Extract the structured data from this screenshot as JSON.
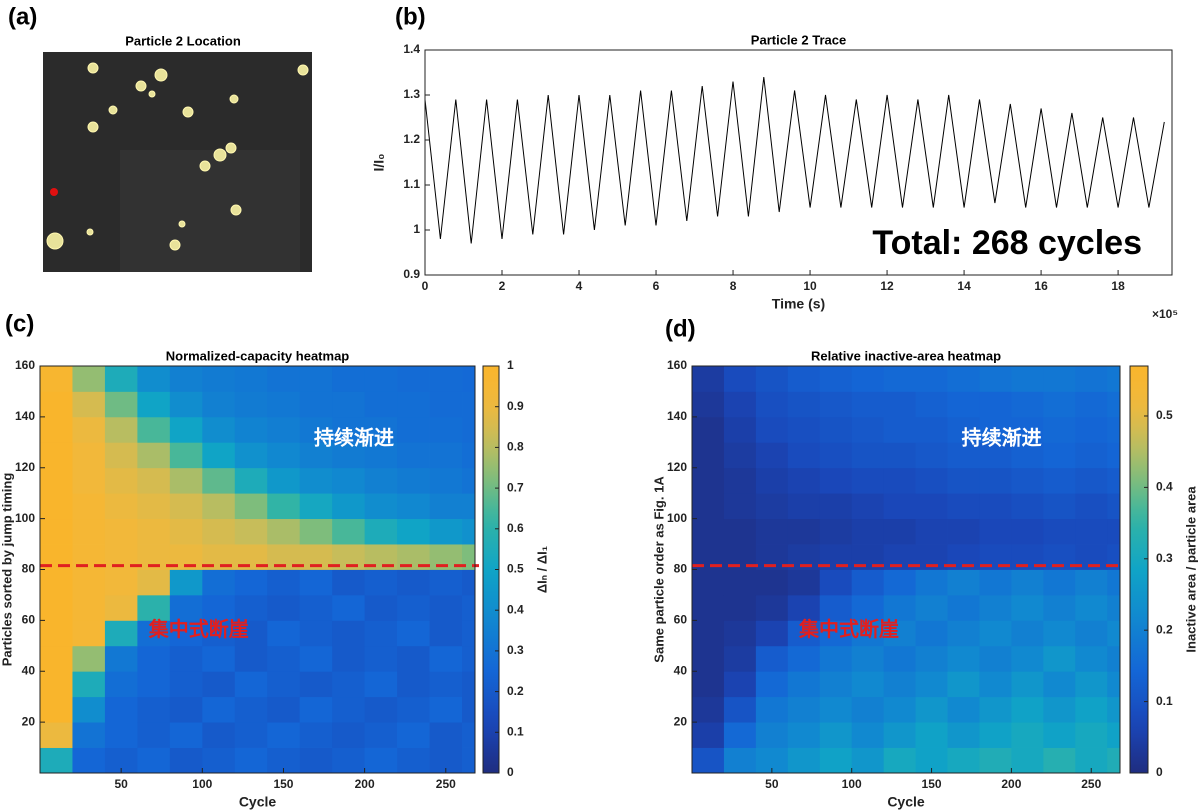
{
  "panel_labels": [
    "(a)",
    "(b)",
    "(c)",
    "(d)"
  ],
  "image": {
    "title": "Particle 2 Location"
  },
  "chart_data": [
    {
      "type": "line",
      "title": "Particle 2 Trace",
      "xlabel": "Time (s)",
      "ylabel": "I/I₀",
      "x_multiplier": "×10⁵",
      "annotation": "Total: 268 cycles",
      "color": "#000000",
      "x": [
        0,
        0.4,
        0.8,
        1.2,
        1.6,
        2.0,
        2.4,
        2.8,
        3.2,
        3.6,
        4.0,
        4.4,
        4.8,
        5.2,
        5.6,
        6.0,
        6.4,
        6.8,
        7.2,
        7.6,
        8.0,
        8.4,
        8.8,
        9.2,
        9.6,
        10.0,
        10.4,
        10.8,
        11.2,
        11.6,
        12.0,
        12.4,
        12.8,
        13.2,
        13.6,
        14.0,
        14.4,
        14.8,
        15.2,
        15.6,
        16.0,
        16.4,
        16.8,
        17.2,
        17.6,
        18.0,
        18.4,
        18.8,
        19.2
      ],
      "values": [
        1.29,
        0.98,
        1.29,
        0.97,
        1.29,
        0.98,
        1.29,
        0.99,
        1.3,
        0.99,
        1.3,
        1.0,
        1.3,
        1.01,
        1.31,
        1.01,
        1.31,
        1.02,
        1.32,
        1.03,
        1.33,
        1.03,
        1.34,
        1.04,
        1.31,
        1.05,
        1.3,
        1.05,
        1.29,
        1.05,
        1.3,
        1.05,
        1.29,
        1.05,
        1.3,
        1.05,
        1.29,
        1.06,
        1.28,
        1.05,
        1.27,
        1.05,
        1.26,
        1.05,
        1.25,
        1.05,
        1.25,
        1.05,
        1.24
      ],
      "xlim": [
        0,
        19.4
      ],
      "xticks": [
        0,
        2,
        4,
        6,
        8,
        10,
        12,
        14,
        16,
        18
      ],
      "ylim": [
        0.9,
        1.4
      ],
      "yticks": [
        0.9,
        1,
        1.1,
        1.2,
        1.3,
        1.4
      ]
    },
    {
      "type": "heatmap",
      "title": "Normalized-capacity heatmap",
      "xlabel": "Cycle",
      "ylabel": "Particles sorted by jump timing",
      "colorbar_label": "ΔIₙ / ΔI₁",
      "annotations": [
        "持续渐进",
        "集中式断崖"
      ],
      "annotation_colors": [
        "#ffffff",
        "#e02020"
      ],
      "hline": 81.5,
      "hline_color": "#e02020",
      "x_edges": [
        0,
        20,
        40,
        60,
        80,
        100,
        120,
        140,
        160,
        180,
        200,
        220,
        240,
        260,
        268
      ],
      "y_edges": [
        0,
        10,
        20,
        30,
        40,
        50,
        60,
        70,
        80,
        90,
        100,
        110,
        120,
        130,
        140,
        150,
        160
      ],
      "z": [
        [
          0.55,
          0.25,
          0.22,
          0.25,
          0.2,
          0.22,
          0.25,
          0.22,
          0.2,
          0.22,
          0.25,
          0.22,
          0.2,
          0.22
        ],
        [
          0.9,
          0.3,
          0.25,
          0.22,
          0.25,
          0.2,
          0.22,
          0.25,
          0.22,
          0.2,
          0.22,
          0.25,
          0.2,
          0.22
        ],
        [
          1,
          0.4,
          0.25,
          0.22,
          0.2,
          0.25,
          0.22,
          0.2,
          0.25,
          0.22,
          0.2,
          0.22,
          0.25,
          0.2
        ],
        [
          1,
          0.55,
          0.28,
          0.25,
          0.22,
          0.2,
          0.25,
          0.22,
          0.2,
          0.22,
          0.25,
          0.2,
          0.22,
          0.2
        ],
        [
          1,
          0.75,
          0.32,
          0.25,
          0.22,
          0.25,
          0.2,
          0.22,
          0.25,
          0.2,
          0.22,
          0.2,
          0.25,
          0.22
        ],
        [
          1,
          0.95,
          0.55,
          0.28,
          0.25,
          0.22,
          0.2,
          0.25,
          0.22,
          0.2,
          0.22,
          0.25,
          0.2,
          0.22
        ],
        [
          1,
          0.95,
          0.9,
          0.6,
          0.28,
          0.25,
          0.22,
          0.2,
          0.22,
          0.25,
          0.2,
          0.22,
          0.2,
          0.22
        ],
        [
          1,
          0.95,
          0.92,
          0.88,
          0.45,
          0.28,
          0.25,
          0.22,
          0.25,
          0.2,
          0.22,
          0.2,
          0.22,
          0.2
        ],
        [
          1,
          0.95,
          0.92,
          0.9,
          0.9,
          0.88,
          0.88,
          0.85,
          0.85,
          0.82,
          0.8,
          0.78,
          0.75,
          0.72
        ],
        [
          1,
          0.95,
          0.92,
          0.9,
          0.88,
          0.85,
          0.82,
          0.78,
          0.72,
          0.65,
          0.55,
          0.5,
          0.45,
          0.42
        ],
        [
          1,
          0.95,
          0.9,
          0.88,
          0.85,
          0.8,
          0.72,
          0.62,
          0.52,
          0.45,
          0.4,
          0.38,
          0.35,
          0.35
        ],
        [
          1,
          0.92,
          0.88,
          0.85,
          0.78,
          0.68,
          0.55,
          0.45,
          0.4,
          0.38,
          0.35,
          0.33,
          0.32,
          0.3
        ],
        [
          1,
          0.92,
          0.85,
          0.78,
          0.65,
          0.5,
          0.42,
          0.38,
          0.35,
          0.33,
          0.32,
          0.3,
          0.3,
          0.28
        ],
        [
          1,
          0.9,
          0.8,
          0.65,
          0.5,
          0.4,
          0.36,
          0.34,
          0.32,
          0.3,
          0.3,
          0.28,
          0.28,
          0.27
        ],
        [
          1,
          0.85,
          0.7,
          0.5,
          0.4,
          0.35,
          0.33,
          0.32,
          0.3,
          0.3,
          0.28,
          0.28,
          0.27,
          0.27
        ],
        [
          0.98,
          0.75,
          0.55,
          0.4,
          0.35,
          0.33,
          0.32,
          0.3,
          0.3,
          0.28,
          0.28,
          0.27,
          0.27,
          0.26
        ]
      ],
      "xlim": [
        0,
        268
      ],
      "xticks": [
        50,
        100,
        150,
        200,
        250
      ],
      "ylim": [
        0,
        160
      ],
      "yticks": [
        20,
        40,
        60,
        80,
        100,
        120,
        140,
        160
      ],
      "clim": [
        0,
        1
      ],
      "cticks": [
        0,
        0.1,
        0.2,
        0.3,
        0.4,
        0.5,
        0.6,
        0.7,
        0.8,
        0.9,
        1
      ]
    },
    {
      "type": "heatmap",
      "title": "Relative inactive-area heatmap",
      "xlabel": "Cycle",
      "ylabel": "Same particle order as Fig. 1A",
      "colorbar_label": "Inactive area / particle area",
      "annotations": [
        "持续渐进",
        "集中式断崖"
      ],
      "annotation_colors": [
        "#ffffff",
        "#e02020"
      ],
      "hline": 81.5,
      "hline_color": "#e02020",
      "x_edges": [
        0,
        20,
        40,
        60,
        80,
        100,
        120,
        140,
        160,
        180,
        200,
        220,
        240,
        260,
        268
      ],
      "y_edges": [
        0,
        10,
        20,
        30,
        40,
        50,
        60,
        70,
        80,
        90,
        100,
        110,
        120,
        130,
        140,
        150,
        160
      ],
      "z": [
        [
          0.1,
          0.2,
          0.22,
          0.25,
          0.28,
          0.25,
          0.3,
          0.28,
          0.3,
          0.32,
          0.3,
          0.33,
          0.3,
          0.32
        ],
        [
          0.05,
          0.15,
          0.2,
          0.22,
          0.25,
          0.22,
          0.25,
          0.28,
          0.25,
          0.28,
          0.3,
          0.28,
          0.3,
          0.28
        ],
        [
          0.03,
          0.1,
          0.18,
          0.2,
          0.22,
          0.2,
          0.22,
          0.25,
          0.22,
          0.25,
          0.28,
          0.25,
          0.28,
          0.25
        ],
        [
          0.02,
          0.06,
          0.15,
          0.18,
          0.2,
          0.22,
          0.2,
          0.22,
          0.25,
          0.22,
          0.25,
          0.22,
          0.25,
          0.22
        ],
        [
          0.02,
          0.04,
          0.12,
          0.15,
          0.18,
          0.2,
          0.18,
          0.2,
          0.22,
          0.2,
          0.22,
          0.25,
          0.22,
          0.2
        ],
        [
          0.02,
          0.03,
          0.06,
          0.12,
          0.15,
          0.18,
          0.2,
          0.18,
          0.2,
          0.22,
          0.2,
          0.22,
          0.2,
          0.22
        ],
        [
          0.02,
          0.02,
          0.03,
          0.06,
          0.12,
          0.15,
          0.18,
          0.2,
          0.18,
          0.2,
          0.22,
          0.2,
          0.22,
          0.2
        ],
        [
          0.02,
          0.02,
          0.02,
          0.03,
          0.08,
          0.12,
          0.15,
          0.18,
          0.2,
          0.18,
          0.2,
          0.18,
          0.2,
          0.18
        ],
        [
          0.02,
          0.02,
          0.03,
          0.04,
          0.05,
          0.05,
          0.06,
          0.06,
          0.07,
          0.08,
          0.08,
          0.09,
          0.08,
          0.09
        ],
        [
          0.02,
          0.02,
          0.03,
          0.03,
          0.04,
          0.05,
          0.05,
          0.06,
          0.06,
          0.07,
          0.07,
          0.08,
          0.08,
          0.08
        ],
        [
          0.02,
          0.03,
          0.04,
          0.05,
          0.05,
          0.06,
          0.07,
          0.07,
          0.08,
          0.08,
          0.09,
          0.1,
          0.09,
          0.1
        ],
        [
          0.02,
          0.03,
          0.05,
          0.06,
          0.07,
          0.08,
          0.08,
          0.09,
          0.1,
          0.1,
          0.11,
          0.12,
          0.11,
          0.12
        ],
        [
          0.02,
          0.04,
          0.06,
          0.08,
          0.09,
          0.1,
          0.1,
          0.11,
          0.12,
          0.12,
          0.13,
          0.14,
          0.13,
          0.14
        ],
        [
          0.02,
          0.05,
          0.08,
          0.09,
          0.1,
          0.11,
          0.12,
          0.12,
          0.13,
          0.14,
          0.14,
          0.15,
          0.14,
          0.15
        ],
        [
          0.03,
          0.06,
          0.09,
          0.1,
          0.11,
          0.12,
          0.12,
          0.13,
          0.14,
          0.14,
          0.15,
          0.16,
          0.15,
          0.16
        ],
        [
          0.04,
          0.08,
          0.1,
          0.12,
          0.13,
          0.14,
          0.15,
          0.15,
          0.16,
          0.17,
          0.18,
          0.18,
          0.17,
          0.18
        ]
      ],
      "xlim": [
        0,
        268
      ],
      "xticks": [
        50,
        100,
        150,
        200,
        250
      ],
      "ylim": [
        0,
        160
      ],
      "yticks": [
        20,
        40,
        60,
        80,
        100,
        120,
        140,
        160
      ],
      "clim": [
        0,
        0.57
      ],
      "cticks": [
        0,
        0.1,
        0.2,
        0.3,
        0.4,
        0.5
      ]
    }
  ]
}
